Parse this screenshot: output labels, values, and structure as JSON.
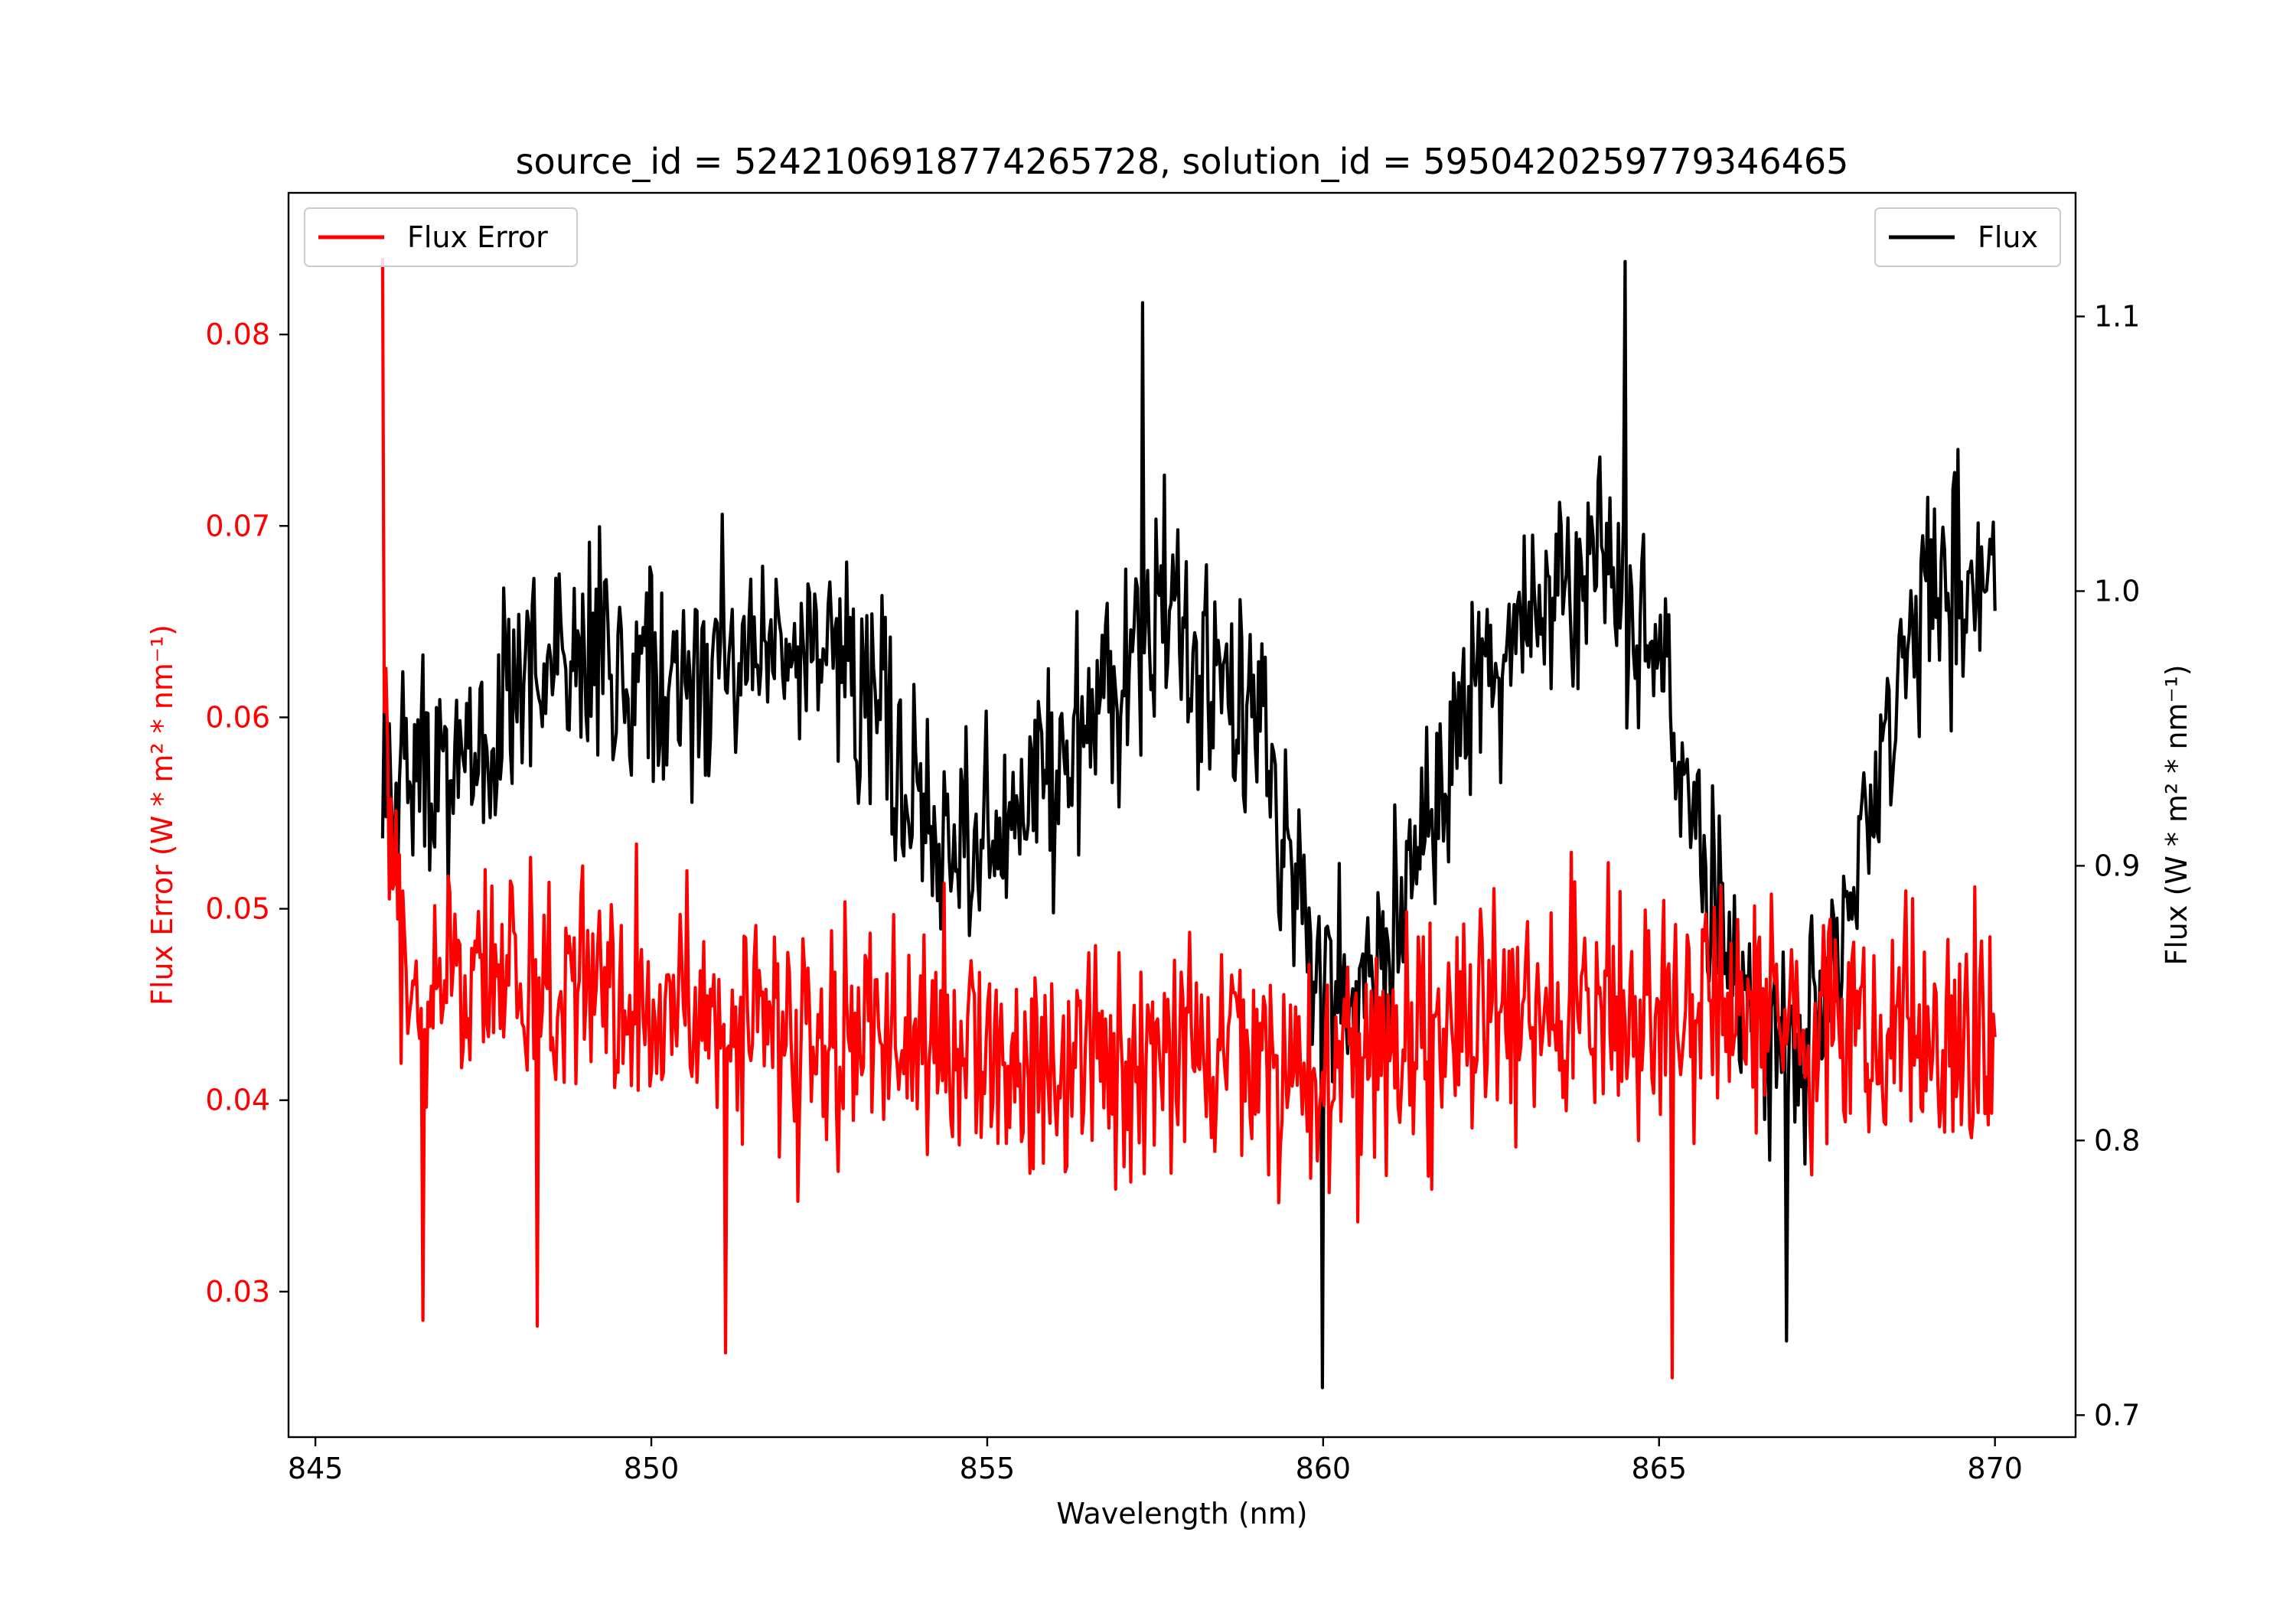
{
  "chart_data": {
    "type": "line",
    "title": "source_id = 5242106918774265728, solution_id = 5950420259779346465",
    "xlabel": "Wavelength (nm)",
    "ylabel_left": "Flux Error (W * m² * nm⁻¹)",
    "ylabel_right": "Flux (W * m² * nm⁻¹)",
    "xlim": [
      844.6,
      871.2
    ],
    "ylim_left": [
      0.0224,
      0.0874
    ],
    "ylim_right": [
      0.692,
      1.145
    ],
    "xticks": [
      845,
      850,
      855,
      860,
      865,
      870
    ],
    "yticks_left": [
      0.03,
      0.04,
      0.05,
      0.06,
      0.07,
      0.08
    ],
    "yticks_right": [
      0.7,
      0.8,
      0.9,
      1.0,
      1.1
    ],
    "x_range": [
      846.0,
      870.0
    ],
    "grid": false,
    "colors": {
      "flux_error": "#ff0000",
      "flux": "#000000",
      "axis": "#000000",
      "left_axis_text": "#ff0000"
    },
    "legends": [
      {
        "label": "Flux Error",
        "placement": "top-left",
        "color": "#ff0000"
      },
      {
        "label": "Flux",
        "placement": "top-right",
        "color": "#000000"
      }
    ],
    "series": [
      {
        "name": "Flux Error",
        "axis": "left",
        "color": "#ff0000",
        "profile_x": [
          846.0,
          846.02,
          846.1,
          846.5,
          848,
          850,
          852,
          854,
          856,
          858,
          860,
          862,
          864,
          866,
          868,
          870
        ],
        "profile_y": [
          0.084,
          0.065,
          0.052,
          0.045,
          0.047,
          0.045,
          0.043,
          0.043,
          0.042,
          0.042,
          0.041,
          0.044,
          0.045,
          0.045,
          0.043,
          0.044
        ],
        "noise": 0.007,
        "extremes": [
          [
            846.0,
            0.084
          ],
          [
            851.1,
            0.0268
          ],
          [
            865.2,
            0.0255
          ],
          [
            848.3,
            0.0282
          ],
          [
            846.6,
            0.0285
          ]
        ]
      },
      {
        "name": "Flux",
        "axis": "right",
        "color": "#000000",
        "profile_x": [
          846.0,
          847,
          848.5,
          850,
          851.5,
          853,
          854.5,
          856,
          857.5,
          859,
          860,
          861,
          862.5,
          864,
          865,
          866,
          867,
          868,
          869,
          870
        ],
        "profile_y": [
          0.94,
          0.93,
          0.98,
          0.96,
          0.98,
          0.97,
          0.9,
          0.93,
          0.99,
          0.95,
          0.85,
          0.87,
          0.98,
          1.01,
          0.98,
          0.87,
          0.82,
          0.9,
          1.0,
          1.0
        ],
        "noise": 0.045,
        "extremes": [
          [
            860.0,
            0.71
          ],
          [
            864.5,
            1.12
          ],
          [
            866.9,
            0.727
          ],
          [
            857.3,
            1.105
          ],
          [
            846.0,
            0.91
          ]
        ]
      }
    ]
  }
}
